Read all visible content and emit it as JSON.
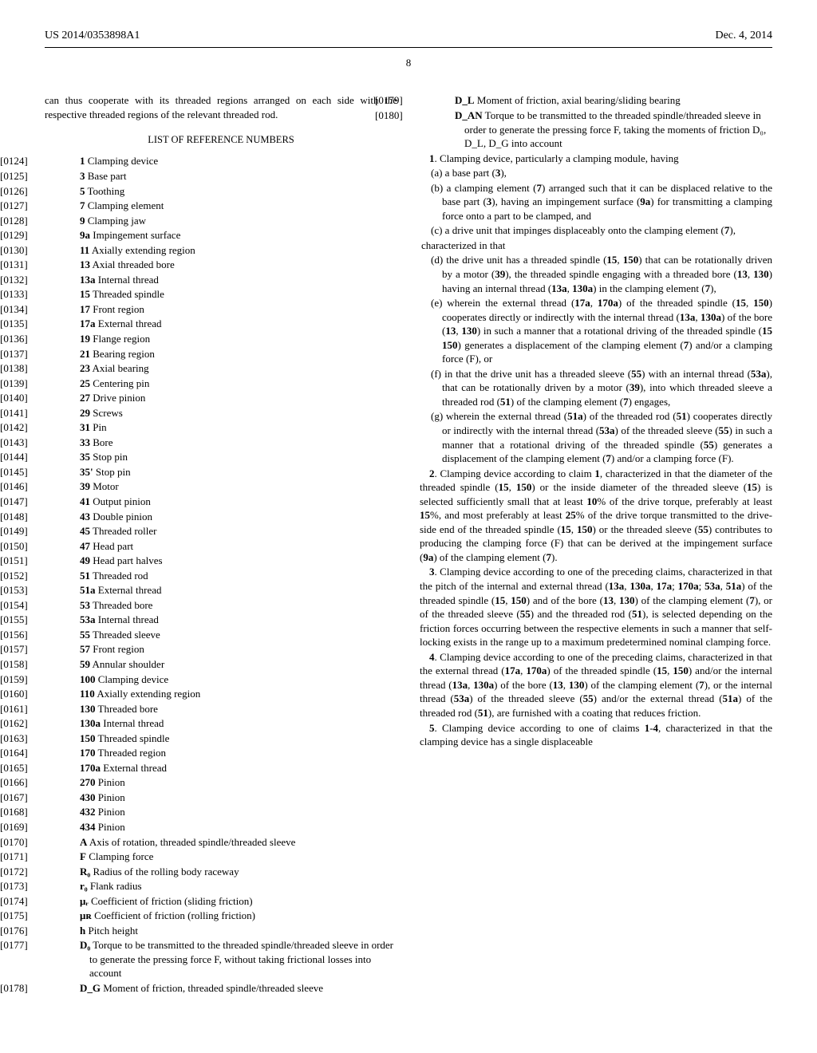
{
  "header": {
    "left": "US 2014/0353898A1",
    "right": "Dec. 4, 2014"
  },
  "page_number": "8",
  "left_col": {
    "intro_para": "can thus cooperate with its threaded regions arranged on each side with the respective threaded regions of the relevant threaded rod.",
    "section_title": "LIST OF REFERENCE NUMBERS",
    "refs": [
      {
        "n": "[0124]",
        "t": "1 Clamping device"
      },
      {
        "n": "[0125]",
        "t": "3 Base part"
      },
      {
        "n": "[0126]",
        "t": "5 Toothing"
      },
      {
        "n": "[0127]",
        "t": "7 Clamping element"
      },
      {
        "n": "[0128]",
        "t": "9 Clamping jaw"
      },
      {
        "n": "[0129]",
        "t": "9a Impingement surface"
      },
      {
        "n": "[0130]",
        "t": "11 Axially extending region"
      },
      {
        "n": "[0131]",
        "t": "13 Axial threaded bore"
      },
      {
        "n": "[0132]",
        "t": "13a Internal thread"
      },
      {
        "n": "[0133]",
        "t": "15 Threaded spindle"
      },
      {
        "n": "[0134]",
        "t": "17 Front region"
      },
      {
        "n": "[0135]",
        "t": "17a External thread"
      },
      {
        "n": "[0136]",
        "t": "19 Flange region"
      },
      {
        "n": "[0137]",
        "t": "21 Bearing region"
      },
      {
        "n": "[0138]",
        "t": "23 Axial bearing"
      },
      {
        "n": "[0139]",
        "t": "25 Centering pin"
      },
      {
        "n": "[0140]",
        "t": "27 Drive pinion"
      },
      {
        "n": "[0141]",
        "t": "29 Screws"
      },
      {
        "n": "[0142]",
        "t": "31 Pin"
      },
      {
        "n": "[0143]",
        "t": "33 Bore"
      },
      {
        "n": "[0144]",
        "t": "35 Stop pin"
      },
      {
        "n": "[0145]",
        "t": "35' Stop pin"
      },
      {
        "n": "[0146]",
        "t": "39 Motor"
      },
      {
        "n": "[0147]",
        "t": "41 Output pinion"
      },
      {
        "n": "[0148]",
        "t": "43 Double pinion"
      },
      {
        "n": "[0149]",
        "t": "45 Threaded roller"
      },
      {
        "n": "[0150]",
        "t": "47 Head part"
      },
      {
        "n": "[0151]",
        "t": "49 Head part halves"
      },
      {
        "n": "[0152]",
        "t": "51 Threaded rod"
      },
      {
        "n": "[0153]",
        "t": "51a External thread"
      },
      {
        "n": "[0154]",
        "t": "53 Threaded bore"
      },
      {
        "n": "[0155]",
        "t": "53a Internal thread"
      },
      {
        "n": "[0156]",
        "t": "55 Threaded sleeve"
      },
      {
        "n": "[0157]",
        "t": "57 Front region"
      },
      {
        "n": "[0158]",
        "t": "59 Annular shoulder"
      },
      {
        "n": "[0159]",
        "t": "100 Clamping device"
      },
      {
        "n": "[0160]",
        "t": "110 Axially extending region"
      },
      {
        "n": "[0161]",
        "t": "130 Threaded bore"
      },
      {
        "n": "[0162]",
        "t": "130a Internal thread"
      },
      {
        "n": "[0163]",
        "t": "150 Threaded spindle"
      },
      {
        "n": "[0164]",
        "t": "170 Threaded region"
      },
      {
        "n": "[0165]",
        "t": "170a External thread"
      },
      {
        "n": "[0166]",
        "t": "270 Pinion"
      },
      {
        "n": "[0167]",
        "t": "430 Pinion"
      },
      {
        "n": "[0168]",
        "t": "432 Pinion"
      },
      {
        "n": "[0169]",
        "t": "434 Pinion"
      },
      {
        "n": "[0170]",
        "t": "A Axis of rotation, threaded spindle/threaded sleeve"
      },
      {
        "n": "[0171]",
        "t": "F Clamping force"
      },
      {
        "n": "[0172]",
        "t": "R₀ Radius of the rolling body raceway"
      },
      {
        "n": "[0173]",
        "t": "r₀ Flank radius"
      },
      {
        "n": "[0174]",
        "t": "μᵣ Coefficient of friction (sliding friction)"
      },
      {
        "n": "[0175]",
        "t": "μʀ Coefficient of friction (rolling friction)"
      },
      {
        "n": "[0176]",
        "t": "h Pitch height"
      },
      {
        "n": "[0177]",
        "t": "D₀ Torque to be transmitted to the threaded spindle/threaded sleeve in order to generate the pressing force F, without taking frictional losses into account"
      },
      {
        "n": "[0178]",
        "t": "D_G Moment of friction, threaded spindle/threaded sleeve"
      }
    ]
  },
  "right_col": {
    "top_refs": [
      {
        "n": "[0179]",
        "t": "D_L Moment of friction, axial bearing/sliding bearing"
      },
      {
        "n": "[0180]",
        "t": "D_AN Torque to be transmitted to the threaded spindle/threaded sleeve in order to generate the pressing force F, taking the moments of friction D₀, D_L, D_G into account"
      }
    ],
    "claim1_lead": "1. Clamping device, particularly a clamping module, having",
    "claim1_a": "(a) a base part (3),",
    "claim1_b": "(b) a clamping element (7) arranged such that it can be displaced relative to the base part (3), having an impingement surface (9a) for transmitting a clamping force onto a part to be clamped, and",
    "claim1_c": "(c) a drive unit that impinges displaceably onto the clamping element (7),",
    "claim1_char": "characterized in that",
    "claim1_d": "(d) the drive unit has a threaded spindle (15, 150) that can be rotationally driven by a motor (39), the threaded spindle engaging with a threaded bore (13, 130) having an internal thread (13a, 130a) in the clamping element (7),",
    "claim1_e": "(e) wherein the external thread (17a, 170a) of the threaded spindle (15, 150) cooperates directly or indirectly with the internal thread (13a, 130a) of the bore (13, 130) in such a manner that a rotational driving of the threaded spindle (15 150) generates a displacement of the clamping element (7) and/or a clamping force (F), or",
    "claim1_f": "(f) in that the drive unit has a threaded sleeve (55) with an internal thread (53a), that can be rotationally driven by a motor (39), into which threaded sleeve a threaded rod (51) of the clamping element (7) engages,",
    "claim1_g": "(g) wherein the external thread (51a) of the threaded rod (51) cooperates directly or indirectly with the internal thread (53a) of the threaded sleeve (55) in such a manner that a rotational driving of the threaded spindle (55) generates a displacement of the clamping element (7) and/or a clamping force (F).",
    "claim2": "2. Clamping device according to claim 1, characterized in that the diameter of the threaded spindle (15, 150) or the inside diameter of the threaded sleeve (15) is selected sufficiently small that at least 10% of the drive torque, preferably at least 15%, and most preferably at least 25% of the drive torque transmitted to the drive-side end of the threaded spindle (15, 150) or the threaded sleeve (55) contributes to producing the clamping force (F) that can be derived at the impingement surface (9a) of the clamping element (7).",
    "claim3": "3. Clamping device according to one of the preceding claims, characterized in that the pitch of the internal and external thread (13a, 130a, 17a; 170a; 53a, 51a) of the threaded spindle (15, 150) and of the bore (13, 130) of the clamping element (7), or of the threaded sleeve (55) and the threaded rod (51), is selected depending on the friction forces occurring between the respective elements in such a manner that self-locking exists in the range up to a maximum predetermined nominal clamping force.",
    "claim4": "4. Clamping device according to one of the preceding claims, characterized in that the external thread (17a, 170a) of the threaded spindle (15, 150) and/or the internal thread (13a, 130a) of the bore (13, 130) of the clamping element (7), or the internal thread (53a) of the threaded sleeve (55) and/or the external thread (51a) of the threaded rod (51), are furnished with a coating that reduces friction.",
    "claim5": "5. Clamping device according to one of claims 1-4, characterized in that the clamping device has a single displaceable"
  }
}
